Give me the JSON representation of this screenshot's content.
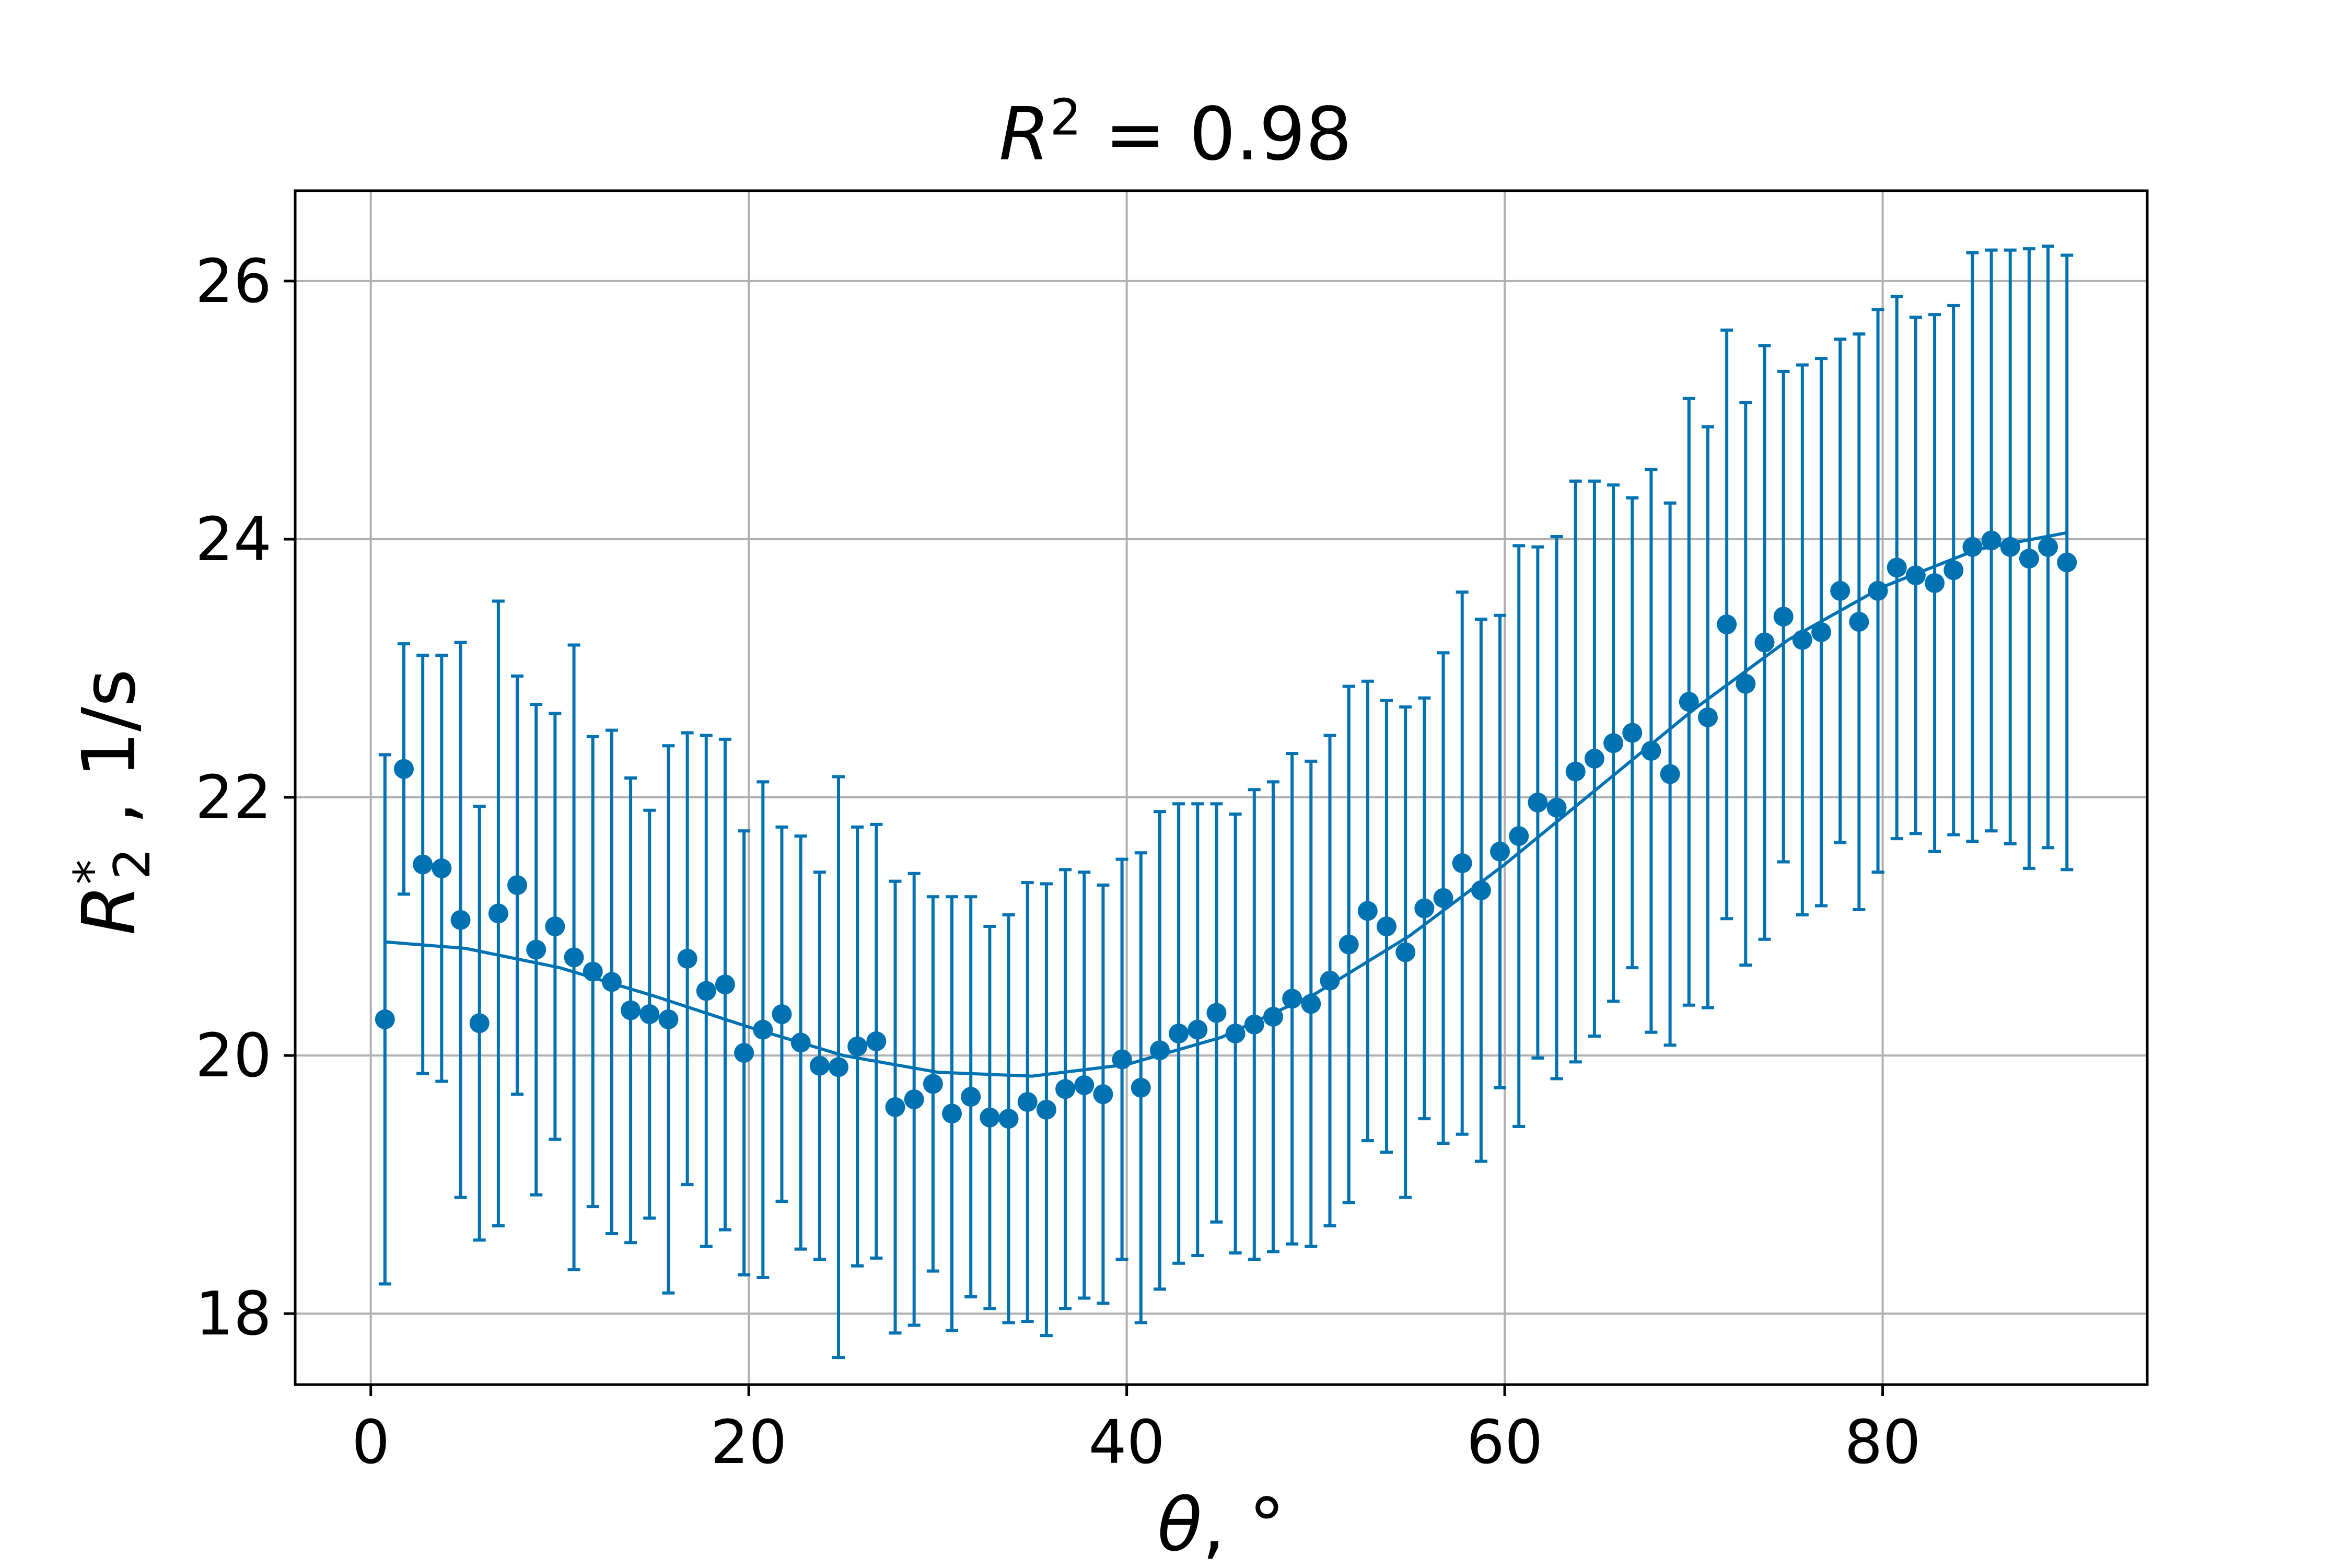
{
  "chart_data": {
    "type": "scatter",
    "title": {
      "symbol": "R",
      "power": "2",
      "rest": " = 0.98"
    },
    "xlabel": {
      "symbol": "θ",
      "rest": ", °"
    },
    "ylabel": {
      "symbol": "R",
      "sup": "*",
      "sub": "2",
      "rest": " , 1/s"
    },
    "xlim": [
      -4,
      94
    ],
    "ylim": [
      17.45,
      26.7
    ],
    "xticks": [
      0,
      20,
      40,
      60,
      80
    ],
    "yticks": [
      18,
      20,
      22,
      24,
      26
    ],
    "grid": true,
    "color": "#0072B2",
    "series": [
      {
        "kind": "errorbar-points",
        "x": [
          0.75,
          1.75,
          2.75,
          3.75,
          4.75,
          5.75,
          6.75,
          7.75,
          8.75,
          9.75,
          10.75,
          11.75,
          12.75,
          13.75,
          14.75,
          15.75,
          16.75,
          17.75,
          18.75,
          19.75,
          20.75,
          21.75,
          22.75,
          23.75,
          24.75,
          25.75,
          26.75,
          27.75,
          28.75,
          29.75,
          30.75,
          31.75,
          32.75,
          33.75,
          34.75,
          35.75,
          36.75,
          37.75,
          38.75,
          39.75,
          40.75,
          41.75,
          42.75,
          43.75,
          44.75,
          45.75,
          46.75,
          47.75,
          48.75,
          49.75,
          50.75,
          51.75,
          52.75,
          53.75,
          54.75,
          55.75,
          56.75,
          57.75,
          58.75,
          59.75,
          60.75,
          61.75,
          62.75,
          63.75,
          64.75,
          65.75,
          66.75,
          67.75,
          68.75,
          69.75,
          70.75,
          71.75,
          72.75,
          73.75,
          74.75,
          75.75,
          76.75,
          77.75,
          78.75,
          79.75,
          80.75,
          81.75,
          82.75,
          83.75,
          84.75,
          85.75,
          86.75,
          87.75,
          88.75,
          89.75
        ],
        "y": [
          20.28,
          22.22,
          21.48,
          21.45,
          21.05,
          20.25,
          21.1,
          21.32,
          20.82,
          21.0,
          20.76,
          20.65,
          20.57,
          20.35,
          20.32,
          20.28,
          20.75,
          20.5,
          20.55,
          20.02,
          20.2,
          20.32,
          20.1,
          19.92,
          19.91,
          20.07,
          20.11,
          19.6,
          19.66,
          19.78,
          19.55,
          19.68,
          19.52,
          19.51,
          19.64,
          19.58,
          19.74,
          19.77,
          19.7,
          19.97,
          19.75,
          20.04,
          20.17,
          20.2,
          20.33,
          20.17,
          20.24,
          20.3,
          20.44,
          20.4,
          20.58,
          20.86,
          21.12,
          21.0,
          20.8,
          21.14,
          21.22,
          21.49,
          21.28,
          21.58,
          21.7,
          21.96,
          21.92,
          22.2,
          22.3,
          22.42,
          22.5,
          22.36,
          22.18,
          22.74,
          22.62,
          23.34,
          22.88,
          23.2,
          23.4,
          23.22,
          23.28,
          23.6,
          23.36,
          23.6,
          23.78,
          23.72,
          23.66,
          23.76,
          23.94,
          23.99,
          23.94,
          23.85,
          23.94,
          23.82
        ],
        "yerr": [
          2.05,
          0.97,
          1.62,
          1.65,
          2.15,
          1.68,
          2.42,
          1.62,
          1.9,
          1.65,
          2.42,
          1.82,
          1.95,
          1.8,
          1.58,
          2.12,
          1.75,
          1.98,
          1.9,
          1.72,
          1.92,
          1.45,
          1.6,
          1.5,
          2.25,
          1.7,
          1.68,
          1.75,
          1.75,
          1.45,
          1.68,
          1.55,
          1.48,
          1.58,
          1.7,
          1.75,
          1.7,
          1.65,
          1.62,
          1.55,
          1.82,
          1.85,
          1.78,
          1.75,
          1.62,
          1.7,
          1.82,
          1.82,
          1.9,
          1.88,
          1.9,
          2.0,
          1.78,
          1.75,
          1.9,
          1.63,
          1.9,
          2.1,
          2.1,
          1.83,
          2.25,
          1.98,
          2.1,
          2.25,
          2.15,
          2.0,
          1.82,
          2.18,
          2.1,
          2.35,
          2.25,
          2.28,
          2.18,
          2.3,
          1.9,
          2.13,
          2.12,
          1.95,
          2.23,
          2.18,
          2.1,
          2.0,
          2.08,
          2.05,
          2.28,
          2.25,
          2.3,
          2.4,
          2.33,
          2.38
        ]
      },
      {
        "kind": "fit-line",
        "x": [
          0.75,
          5,
          10,
          15,
          20,
          25,
          30,
          35,
          40,
          45,
          50,
          55,
          60,
          65,
          70,
          75,
          80,
          85,
          89.75
        ],
        "y": [
          20.88,
          20.83,
          20.68,
          20.46,
          20.22,
          20.0,
          19.87,
          19.84,
          19.93,
          20.14,
          20.48,
          20.93,
          21.48,
          22.08,
          22.68,
          23.22,
          23.63,
          23.92,
          24.05
        ]
      }
    ]
  }
}
